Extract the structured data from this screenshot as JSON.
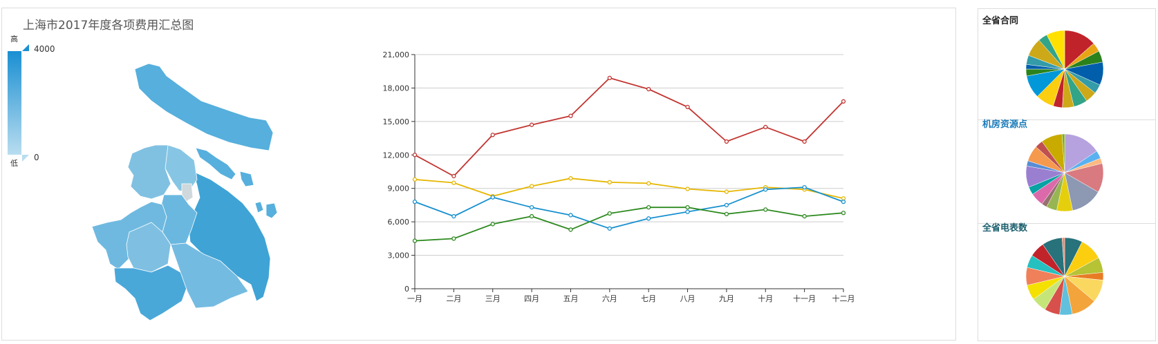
{
  "map": {
    "title": "上海市2017年度各项费用汇总图",
    "legend": {
      "high_label": "高",
      "low_label": "低",
      "max": "4000",
      "min": "0",
      "color_high": "#1a8fd2",
      "color_low": "#b9ddf0"
    }
  },
  "chart_data": [
    {
      "type": "line",
      "categories": [
        "一月",
        "二月",
        "三月",
        "四月",
        "五月",
        "六月",
        "七月",
        "八月",
        "九月",
        "十月",
        "十一月",
        "十二月"
      ],
      "ylim": [
        0,
        21000
      ],
      "yticks": [
        "0",
        "3,000",
        "6,000",
        "9,000",
        "12,000",
        "15,000",
        "18,000",
        "21,000"
      ],
      "grid": true,
      "series": [
        {
          "color": "#c23531",
          "values": [
            12000,
            10100,
            13800,
            14700,
            15500,
            18900,
            17900,
            16300,
            13200,
            14500,
            13200,
            16800
          ]
        },
        {
          "color": "#e6b600",
          "values": [
            9800,
            9500,
            8300,
            9200,
            9900,
            9550,
            9450,
            8950,
            8700,
            9100,
            8900,
            8100
          ]
        },
        {
          "color": "#1790cf",
          "values": [
            7800,
            6500,
            8200,
            7300,
            6600,
            5400,
            6300,
            6900,
            7500,
            8900,
            9100,
            7800
          ]
        },
        {
          "color": "#2d8a1f",
          "values": [
            4300,
            4500,
            5800,
            6500,
            5300,
            6750,
            7300,
            7300,
            6700,
            7100,
            6500,
            6800
          ]
        }
      ]
    },
    {
      "type": "pie",
      "title": "全省合同",
      "title_color": "#222222",
      "values": [
        14,
        4,
        5,
        10,
        4,
        5,
        6,
        5,
        4,
        8,
        10,
        3,
        2,
        4,
        8,
        4,
        8
      ],
      "colors": [
        "#c1232b",
        "#e7a516",
        "#2b821d",
        "#005eaa",
        "#339ca8",
        "#cda819",
        "#32a487",
        "#cda819",
        "#c1232b",
        "#fcce10",
        "#0098d9",
        "#2b821d",
        "#005eaa",
        "#339ca8",
        "#cda819",
        "#32a487",
        "#ffe000"
      ]
    },
    {
      "type": "pie",
      "title": "机房资源点",
      "title_color": "#1a7bb9",
      "values": [
        14,
        3,
        2,
        11,
        12,
        6,
        4,
        2,
        5,
        3,
        8,
        2,
        6,
        3,
        8,
        1
      ],
      "colors": [
        "#b6a2de",
        "#5ab1ef",
        "#ffb980",
        "#d87a80",
        "#8d98b3",
        "#e5cf0d",
        "#97b552",
        "#95706d",
        "#dc69aa",
        "#07a2a4",
        "#9a7fd1",
        "#588dd5",
        "#f5994e",
        "#c05050",
        "#c9ab00",
        "#7eb00a"
      ]
    },
    {
      "type": "pie",
      "title": "全省电表数",
      "title_color": "#1a5f6e",
      "values": [
        7,
        9,
        6,
        3,
        9,
        10,
        5,
        6,
        6,
        6,
        7,
        5,
        6,
        8,
        1
      ],
      "colors": [
        "#27727b",
        "#fcce10",
        "#b5c334",
        "#e87c25",
        "#fad860",
        "#f3a43b",
        "#60c0dd",
        "#d7504b",
        "#c6e579",
        "#f4e001",
        "#f0805a",
        "#26c0c0",
        "#c1232b",
        "#27727b",
        "#fe8463"
      ]
    }
  ]
}
